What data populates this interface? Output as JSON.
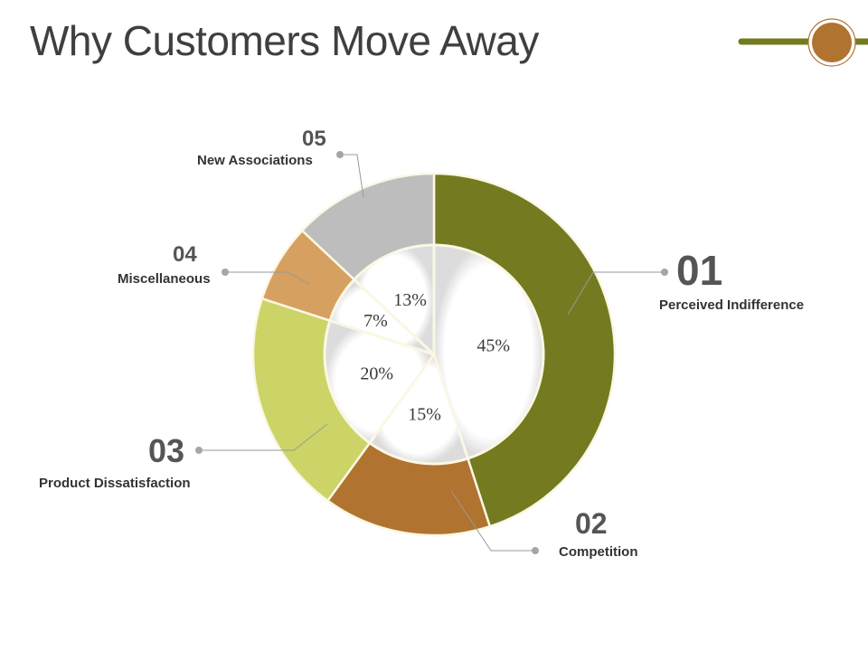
{
  "slide": {
    "title": "Why Customers Move Away"
  },
  "decoration": {
    "line_color": "#747a20",
    "circle_color": "#b07330"
  },
  "chart_data": {
    "type": "pie",
    "subtype": "donut-with-inner-pie",
    "title": "Why Customers Move Away",
    "start_angle": "top, clockwise",
    "categories": [
      "Perceived Indifference",
      "Competition",
      "Product Dissatisfaction",
      "Miscellaneous",
      "New Associations"
    ],
    "values": [
      45,
      15,
      20,
      7,
      13
    ],
    "labels": [
      "45%",
      "15%",
      "20%",
      "7%",
      "13%"
    ],
    "numbers": [
      "01",
      "02",
      "03",
      "04",
      "05"
    ],
    "colors": [
      "#747a20",
      "#b07330",
      "#ccd468",
      "#d6a060",
      "#bdbdbd"
    ],
    "legend_position": "callouts around chart"
  },
  "callouts": [
    {
      "number": "01",
      "label": "Perceived Indifference"
    },
    {
      "number": "02",
      "label": "Competition"
    },
    {
      "number": "03",
      "label": "Product Dissatisfaction"
    },
    {
      "number": "04",
      "label": "Miscellaneous"
    },
    {
      "number": "05",
      "label": "New Associations"
    }
  ]
}
